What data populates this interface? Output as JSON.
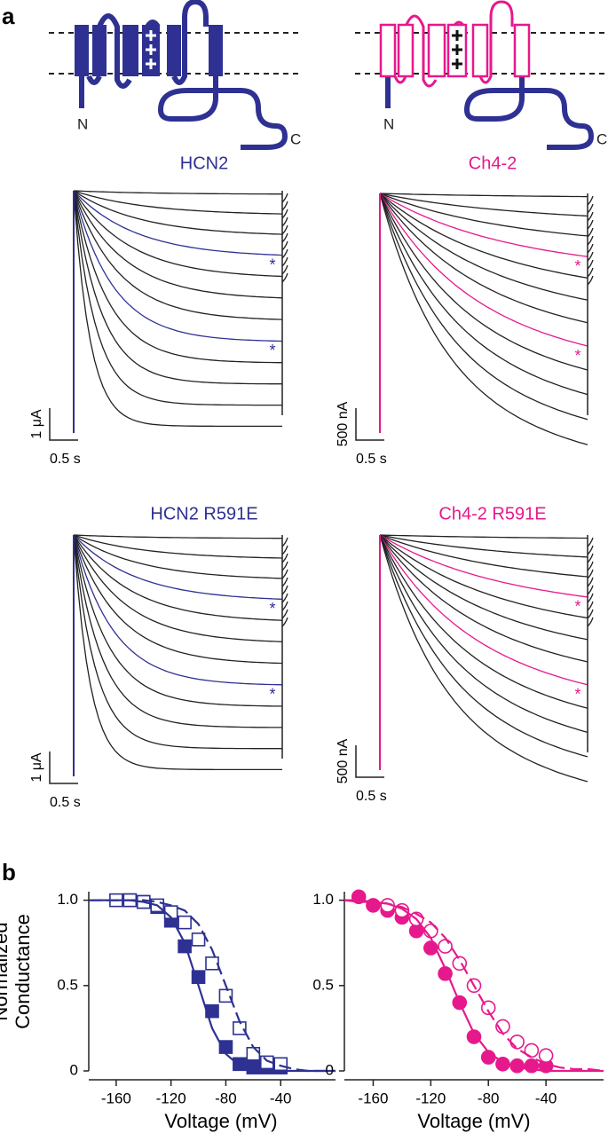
{
  "panel_labels": [
    "a",
    "b"
  ],
  "topology": [
    {
      "n_label": "N",
      "c_label": "C"
    },
    {
      "n_label": "N",
      "c_label": "C"
    }
  ],
  "traces": [
    {
      "title": "HCN2",
      "color": "#2e3192",
      "current_scale": "1 μA",
      "time_scale": "0.5 s",
      "asterisks": [
        "*",
        "*"
      ]
    },
    {
      "title": "Ch4-2",
      "color": "#e6198c",
      "current_scale": "500 nA",
      "time_scale": "0.5 s",
      "asterisks": [
        "*",
        "*"
      ]
    },
    {
      "title": "HCN2 R591E",
      "color": "#2e3192",
      "current_scale": "1 μA",
      "time_scale": "0.5 s",
      "asterisks": [
        "*",
        "*"
      ]
    },
    {
      "title": "Ch4-2 R591E",
      "color": "#e6198c",
      "current_scale": "500 nA",
      "time_scale": "0.5 s",
      "asterisks": [
        "*",
        "*"
      ]
    }
  ],
  "chart_data": [
    {
      "type": "scatter",
      "y_label": "Normalized Conductance",
      "x_label": "Voltage (mV)",
      "xlim": [
        -180,
        0
      ],
      "ylim": [
        0,
        1.05
      ],
      "xticks": [
        -160,
        -120,
        -80,
        -40
      ],
      "yticks": [
        0,
        0.5,
        {
          "value": 1,
          "label": "1.0"
        }
      ],
      "series": [
        {
          "color": "#2e3192",
          "marker": "square",
          "filled": true,
          "x": [
            -150,
            -140,
            -130,
            -120,
            -110,
            -100,
            -90,
            -80,
            -70,
            -60,
            -50,
            -40
          ],
          "values": [
            1.0,
            0.99,
            0.96,
            0.88,
            0.73,
            0.55,
            0.35,
            0.14,
            0.04,
            0.02,
            0.02,
            0.02
          ]
        },
        {
          "color": "#2e3192",
          "marker": "square",
          "filled": false,
          "x": [
            -160,
            -150,
            -140,
            -130,
            -120,
            -110,
            -100,
            -90,
            -80,
            -70,
            -60,
            -50,
            -40
          ],
          "values": [
            1.0,
            1.0,
            0.99,
            0.97,
            0.93,
            0.87,
            0.77,
            0.63,
            0.44,
            0.25,
            0.1,
            0.05,
            0.04
          ]
        },
        {
          "color": "#2e3192",
          "mode": "line",
          "dash": false,
          "x": [
            -180,
            -170,
            -160,
            -150,
            -140,
            -130,
            -120,
            -110,
            -100,
            -90,
            -80,
            -70,
            -60,
            -50,
            -40,
            -30,
            -20,
            -10,
            0
          ],
          "values": [
            1.0,
            1.0,
            1.0,
            1.0,
            0.99,
            0.97,
            0.9,
            0.75,
            0.5,
            0.25,
            0.1,
            0.03,
            0.01,
            0,
            0,
            0,
            0,
            0,
            0
          ]
        },
        {
          "color": "#2e3192",
          "mode": "line",
          "dash": true,
          "x": [
            -180,
            -170,
            -160,
            -150,
            -140,
            -130,
            -120,
            -110,
            -100,
            -90,
            -80,
            -70,
            -60,
            -50,
            -40,
            -30,
            -20,
            -10,
            0
          ],
          "values": [
            1.0,
            1.0,
            1.0,
            1.0,
            1.0,
            0.99,
            0.97,
            0.94,
            0.86,
            0.71,
            0.5,
            0.29,
            0.14,
            0.06,
            0.03,
            0.01,
            0,
            0,
            0
          ]
        }
      ]
    },
    {
      "type": "scatter",
      "xlim": [
        -180,
        0
      ],
      "ylim": [
        0,
        1.05
      ],
      "xticks": [
        -160,
        -120,
        -80,
        -40
      ],
      "x_label": "Voltage (mV)",
      "yticks": [
        0,
        0.5,
        {
          "value": 1,
          "label": "1.0"
        }
      ],
      "series": [
        {
          "color": "#e6198c",
          "marker": "circle",
          "filled": true,
          "x": [
            -170,
            -160,
            -150,
            -140,
            -130,
            -120,
            -110,
            -100,
            -90,
            -80,
            -70,
            -60,
            -50,
            -40
          ],
          "values": [
            1.02,
            0.97,
            0.94,
            0.9,
            0.82,
            0.72,
            0.57,
            0.4,
            0.2,
            0.08,
            0.04,
            0.03,
            0.03,
            0.03
          ]
        },
        {
          "color": "#e6198c",
          "marker": "circle",
          "filled": false,
          "x": [
            -150,
            -140,
            -130,
            -120,
            -110,
            -100,
            -90,
            -80,
            -70,
            -60,
            -50,
            -40
          ],
          "values": [
            0.97,
            0.94,
            0.89,
            0.82,
            0.73,
            0.63,
            0.5,
            0.37,
            0.26,
            0.17,
            0.12,
            0.09
          ]
        },
        {
          "color": "#e6198c",
          "mode": "line",
          "dash": false,
          "x": [
            -180,
            -170,
            -160,
            -150,
            -140,
            -130,
            -120,
            -110,
            -100,
            -90,
            -80,
            -70,
            -60,
            -50,
            -40,
            -30,
            -20,
            -10,
            0
          ],
          "values": [
            1.0,
            1.0,
            0.99,
            0.98,
            0.95,
            0.89,
            0.78,
            0.6,
            0.4,
            0.22,
            0.11,
            0.05,
            0.02,
            0.01,
            0,
            0,
            0,
            0,
            0
          ]
        },
        {
          "color": "#e6198c",
          "mode": "line",
          "dash": true,
          "x": [
            -180,
            -170,
            -160,
            -150,
            -140,
            -130,
            -120,
            -110,
            -100,
            -90,
            -80,
            -70,
            -60,
            -50,
            -40,
            -30,
            -20,
            -10,
            0
          ],
          "values": [
            1.0,
            0.99,
            0.99,
            0.98,
            0.96,
            0.92,
            0.87,
            0.78,
            0.65,
            0.5,
            0.35,
            0.22,
            0.13,
            0.08,
            0.04,
            0.02,
            0.01,
            0.01,
            0
          ]
        }
      ]
    }
  ]
}
